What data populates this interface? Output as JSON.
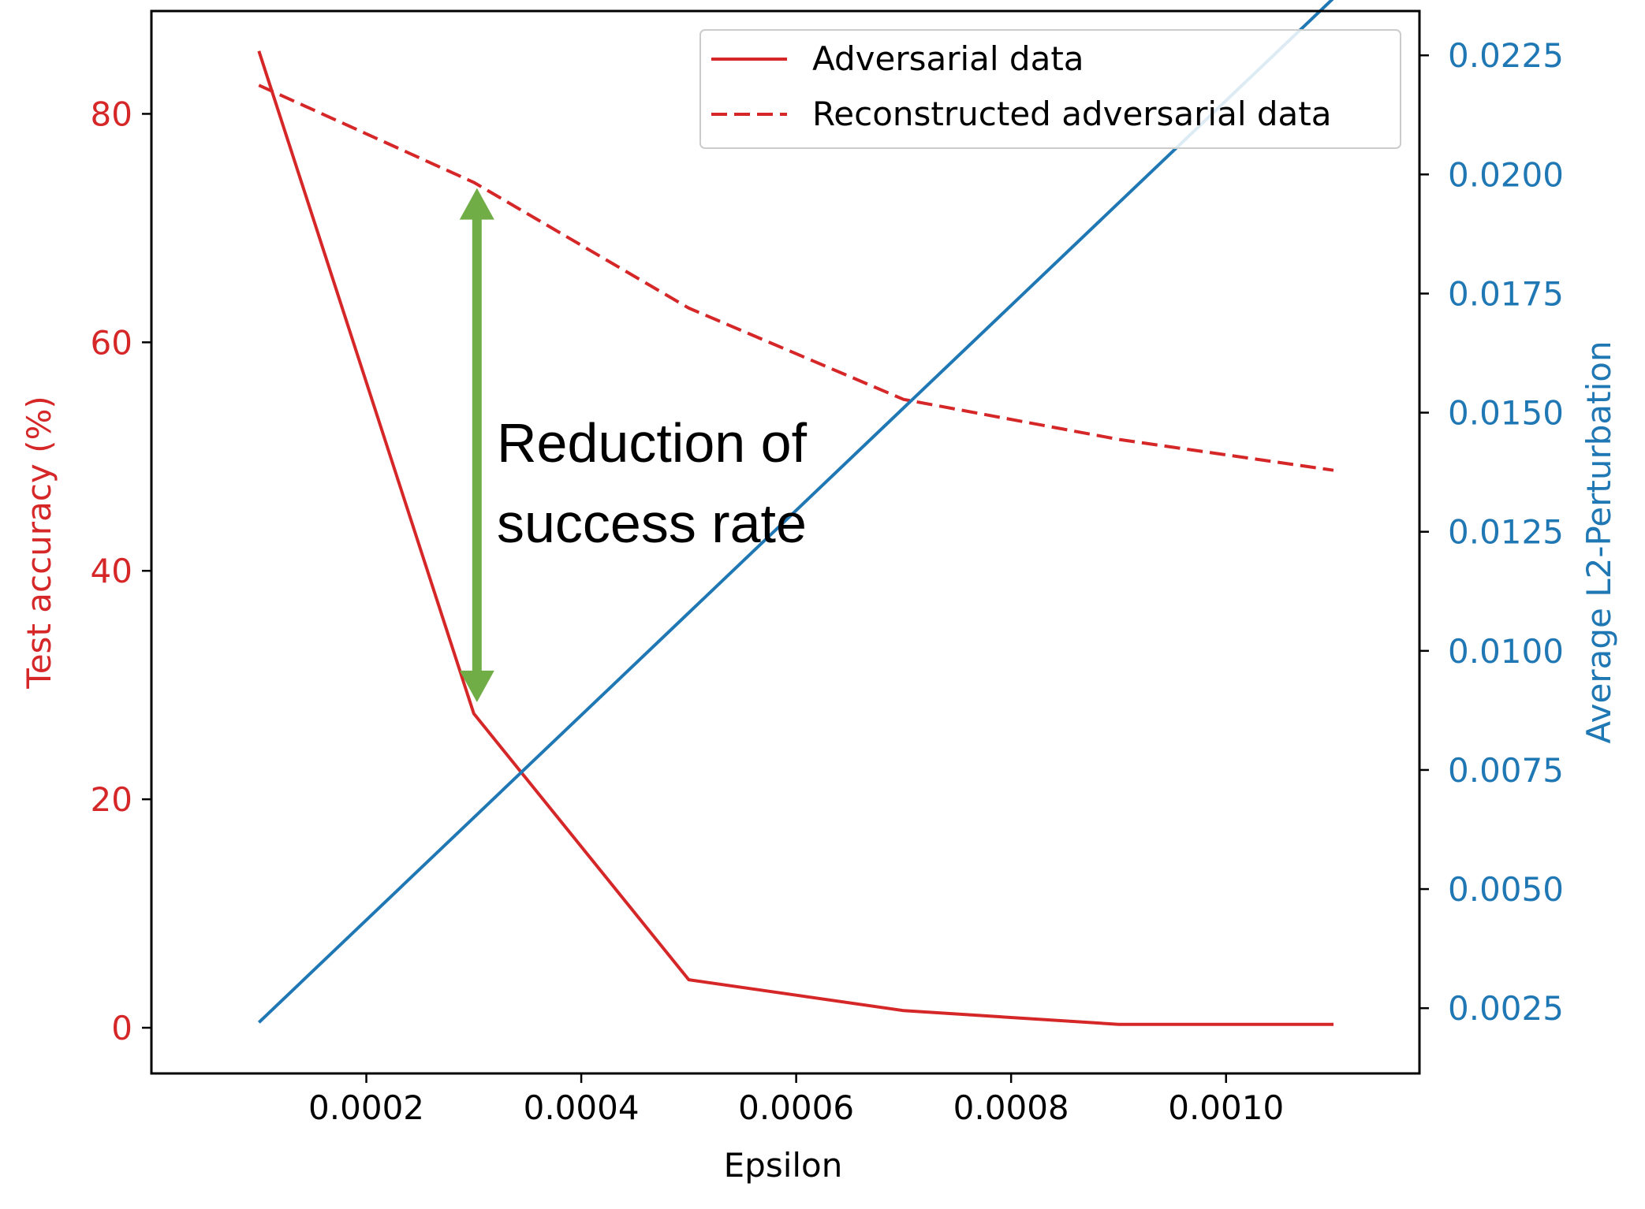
{
  "chart_data": {
    "type": "line",
    "xlabel": "Epsilon",
    "ylabel_left": "Test accuracy (%)",
    "ylabel_right": "Average L2-Perturbation",
    "xlim": [
      0.0,
      0.00118
    ],
    "ylim_left": [
      -4,
      89
    ],
    "ylim_right": [
      0.00113,
      0.02343
    ],
    "x_ticks": [
      0.0002,
      0.0004,
      0.0006,
      0.0008,
      0.001
    ],
    "x_tick_labels": [
      "0.0002",
      "0.0004",
      "0.0006",
      "0.0008",
      "0.0010"
    ],
    "y_left_ticks": [
      0,
      20,
      40,
      60,
      80
    ],
    "y_left_tick_labels": [
      "0",
      "20",
      "40",
      "60",
      "80"
    ],
    "y_right_ticks": [
      0.0025,
      0.005,
      0.0075,
      0.01,
      0.0125,
      0.015,
      0.0175,
      0.02,
      0.0225
    ],
    "y_right_tick_labels": [
      "0.0025",
      "0.0050",
      "0.0075",
      "0.0100",
      "0.0125",
      "0.0150",
      "0.0175",
      "0.0200",
      "0.0225"
    ],
    "x": [
      0.0001,
      0.0003,
      0.0005,
      0.0007,
      0.0009,
      0.0011
    ],
    "series": [
      {
        "name": "Adversarial data",
        "axis": "left",
        "style": "solid",
        "color": "#d62728",
        "values": [
          85.5,
          27.5,
          4.2,
          1.5,
          0.3,
          0.3
        ]
      },
      {
        "name": "Reconstructed adversarial data",
        "axis": "left",
        "style": "dashed",
        "color": "#d62728",
        "values": [
          82.5,
          74.0,
          63.0,
          55.0,
          51.5,
          48.8
        ]
      },
      {
        "name": "Average L2-Perturbation",
        "axis": "right",
        "style": "solid",
        "color": "#1f77b4",
        "values": [
          0.0022,
          0.0065,
          0.0108,
          0.0151,
          0.0194,
          0.0237
        ]
      }
    ],
    "legend": [
      "Adversarial data",
      "Reconstructed adversarial data"
    ],
    "legend_location": "upper-right",
    "annotation": {
      "lines": [
        "Reduction of",
        "success rate"
      ],
      "arrow_x": 0.0003,
      "arrow_from": 28.5,
      "arrow_to": 73.5,
      "color": "#70ad47"
    }
  }
}
